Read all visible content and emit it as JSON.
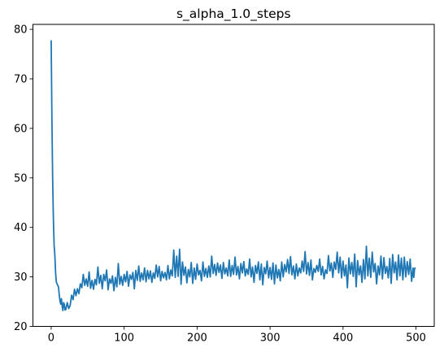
{
  "chart_data": {
    "type": "line",
    "title": "s_alpha_1.0_steps",
    "xlabel": "",
    "ylabel": "",
    "xlim": [
      -25,
      525
    ],
    "ylim": [
      20,
      81
    ],
    "xticks": [
      0,
      100,
      200,
      300,
      400,
      500
    ],
    "yticks": [
      20,
      30,
      40,
      50,
      60,
      70,
      80
    ],
    "grid": false,
    "legend": "none",
    "series": [
      {
        "color": "#1f77b4",
        "points": [
          [
            0,
            77.8
          ],
          [
            1,
            62
          ],
          [
            2,
            50
          ],
          [
            3,
            42
          ],
          [
            4,
            36.5
          ],
          [
            5,
            34.5
          ],
          [
            6,
            31
          ],
          [
            7,
            29
          ],
          [
            8,
            28.6
          ],
          [
            9,
            28.3
          ],
          [
            10,
            28
          ],
          [
            11,
            26.5
          ],
          [
            12,
            25.2
          ],
          [
            13,
            24.5
          ],
          [
            14,
            25.6
          ],
          [
            15,
            24.2
          ],
          [
            16,
            23.2
          ],
          [
            17,
            24.8
          ],
          [
            18,
            24.5
          ],
          [
            19,
            23.3
          ],
          [
            20,
            23.4
          ],
          [
            22,
            24.8
          ],
          [
            24,
            23.6
          ],
          [
            26,
            24.2
          ],
          [
            28,
            26.3
          ],
          [
            30,
            25.4
          ],
          [
            32,
            27.5
          ],
          [
            34,
            26.2
          ],
          [
            36,
            27.6
          ],
          [
            38,
            26.6
          ],
          [
            40,
            28.6
          ],
          [
            42,
            27.8
          ],
          [
            44,
            30.5
          ],
          [
            46,
            28.3
          ],
          [
            48,
            29.6
          ],
          [
            50,
            28.1
          ],
          [
            52,
            31.0
          ],
          [
            54,
            27.7
          ],
          [
            56,
            29.3
          ],
          [
            58,
            27.5
          ],
          [
            60,
            29.5
          ],
          [
            62,
            28.4
          ],
          [
            64,
            32.0
          ],
          [
            66,
            28.7
          ],
          [
            68,
            30.3
          ],
          [
            70,
            27.6
          ],
          [
            72,
            30.5
          ],
          [
            74,
            29.2
          ],
          [
            76,
            31.4
          ],
          [
            78,
            27.4
          ],
          [
            80,
            29.6
          ],
          [
            82,
            28.7
          ],
          [
            84,
            30.2
          ],
          [
            86,
            27.2
          ],
          [
            88,
            29.9
          ],
          [
            90,
            28.0
          ],
          [
            92,
            32.7
          ],
          [
            94,
            28.5
          ],
          [
            96,
            30.1
          ],
          [
            98,
            28.3
          ],
          [
            100,
            30.5
          ],
          [
            102,
            29.0
          ],
          [
            104,
            31.1
          ],
          [
            106,
            28.1
          ],
          [
            108,
            30.4
          ],
          [
            110,
            29.5
          ],
          [
            112,
            30.9
          ],
          [
            114,
            27.6
          ],
          [
            116,
            31.3
          ],
          [
            118,
            29.3
          ],
          [
            120,
            32.2
          ],
          [
            122,
            29.1
          ],
          [
            124,
            30.8
          ],
          [
            126,
            29.4
          ],
          [
            128,
            31.8
          ],
          [
            130,
            29.0
          ],
          [
            132,
            31.3
          ],
          [
            134,
            29.6
          ],
          [
            136,
            31.2
          ],
          [
            138,
            28.9
          ],
          [
            140,
            30.8
          ],
          [
            142,
            29.7
          ],
          [
            144,
            32.4
          ],
          [
            146,
            30.0
          ],
          [
            148,
            32.1
          ],
          [
            150,
            29.2
          ],
          [
            152,
            31.1
          ],
          [
            154,
            29.8
          ],
          [
            156,
            30.9
          ],
          [
            158,
            29.4
          ],
          [
            160,
            32.3
          ],
          [
            162,
            29.6
          ],
          [
            164,
            31.4
          ],
          [
            166,
            30.2
          ],
          [
            168,
            35.4
          ],
          [
            170,
            29.9
          ],
          [
            172,
            34.2
          ],
          [
            174,
            30.1
          ],
          [
            176,
            35.6
          ],
          [
            178,
            28.5
          ],
          [
            180,
            33.0
          ],
          [
            182,
            30.3
          ],
          [
            184,
            32.0
          ],
          [
            186,
            28.8
          ],
          [
            188,
            31.5
          ],
          [
            190,
            30.0
          ],
          [
            192,
            32.9
          ],
          [
            194,
            28.7
          ],
          [
            196,
            31.8
          ],
          [
            198,
            29.5
          ],
          [
            200,
            32.6
          ],
          [
            202,
            30.4
          ],
          [
            204,
            31.3
          ],
          [
            206,
            29.2
          ],
          [
            208,
            33.0
          ],
          [
            210,
            30.1
          ],
          [
            212,
            31.7
          ],
          [
            214,
            29.9
          ],
          [
            216,
            32.2
          ],
          [
            218,
            30.0
          ],
          [
            220,
            34.2
          ],
          [
            222,
            30.7
          ],
          [
            224,
            32.5
          ],
          [
            226,
            30.3
          ],
          [
            228,
            32.8
          ],
          [
            230,
            30.9
          ],
          [
            232,
            32.4
          ],
          [
            234,
            29.7
          ],
          [
            236,
            32.9
          ],
          [
            238,
            30.6
          ],
          [
            240,
            31.8
          ],
          [
            242,
            30.2
          ],
          [
            244,
            33.4
          ],
          [
            246,
            30.1
          ],
          [
            248,
            32.3
          ],
          [
            250,
            30.5
          ],
          [
            252,
            34.0
          ],
          [
            254,
            30.4
          ],
          [
            256,
            32.1
          ],
          [
            258,
            29.6
          ],
          [
            260,
            32.7
          ],
          [
            262,
            30.8
          ],
          [
            264,
            33.1
          ],
          [
            266,
            30.2
          ],
          [
            268,
            31.6
          ],
          [
            270,
            30.5
          ],
          [
            272,
            33.6
          ],
          [
            274,
            30.0
          ],
          [
            276,
            32.0
          ],
          [
            278,
            28.9
          ],
          [
            280,
            32.3
          ],
          [
            282,
            30.7
          ],
          [
            284,
            33.0
          ],
          [
            286,
            29.4
          ],
          [
            288,
            32.6
          ],
          [
            290,
            28.4
          ],
          [
            292,
            31.9
          ],
          [
            294,
            30.6
          ],
          [
            296,
            33.2
          ],
          [
            298,
            29.8
          ],
          [
            300,
            31.9
          ],
          [
            302,
            29.5
          ],
          [
            304,
            32.8
          ],
          [
            306,
            28.6
          ],
          [
            308,
            32.4
          ],
          [
            310,
            29.8
          ],
          [
            312,
            31.5
          ],
          [
            314,
            29.2
          ],
          [
            316,
            33.0
          ],
          [
            318,
            30.0
          ],
          [
            320,
            32.5
          ],
          [
            322,
            31.0
          ],
          [
            324,
            33.5
          ],
          [
            326,
            30.7
          ],
          [
            328,
            34.1
          ],
          [
            330,
            30.4
          ],
          [
            332,
            32.2
          ],
          [
            334,
            29.6
          ],
          [
            336,
            32.6
          ],
          [
            338,
            30.2
          ],
          [
            340,
            31.8
          ],
          [
            342,
            30.8
          ],
          [
            344,
            33.2
          ],
          [
            346,
            31.1
          ],
          [
            348,
            35.1
          ],
          [
            350,
            30.6
          ],
          [
            352,
            32.9
          ],
          [
            354,
            30.3
          ],
          [
            356,
            33.4
          ],
          [
            358,
            29.4
          ],
          [
            360,
            31.7
          ],
          [
            362,
            30.9
          ],
          [
            364,
            32.3
          ],
          [
            366,
            31.1
          ],
          [
            368,
            33.6
          ],
          [
            370,
            30.4
          ],
          [
            372,
            32.1
          ],
          [
            374,
            29.6
          ],
          [
            376,
            31.4
          ],
          [
            378,
            30.7
          ],
          [
            380,
            34.3
          ],
          [
            382,
            31.2
          ],
          [
            384,
            32.8
          ],
          [
            386,
            29.9
          ],
          [
            388,
            33.0
          ],
          [
            390,
            31.5
          ],
          [
            392,
            35.0
          ],
          [
            394,
            30.8
          ],
          [
            396,
            34.0
          ],
          [
            398,
            29.8
          ],
          [
            400,
            33.2
          ],
          [
            402,
            30.2
          ],
          [
            404,
            32.4
          ],
          [
            406,
            27.8
          ],
          [
            408,
            33.8
          ],
          [
            410,
            30.6
          ],
          [
            412,
            32.9
          ],
          [
            414,
            30.1
          ],
          [
            416,
            34.6
          ],
          [
            418,
            28.0
          ],
          [
            420,
            33.3
          ],
          [
            422,
            30.4
          ],
          [
            424,
            32.2
          ],
          [
            426,
            28.9
          ],
          [
            428,
            33.5
          ],
          [
            430,
            29.6
          ],
          [
            432,
            36.2
          ],
          [
            434,
            30.2
          ],
          [
            436,
            33.8
          ],
          [
            438,
            29.9
          ],
          [
            440,
            35.0
          ],
          [
            442,
            31.0
          ],
          [
            444,
            32.7
          ],
          [
            446,
            28.6
          ],
          [
            448,
            32.2
          ],
          [
            450,
            30.4
          ],
          [
            452,
            34.2
          ],
          [
            454,
            29.6
          ],
          [
            456,
            33.9
          ],
          [
            458,
            30.7
          ],
          [
            460,
            32.1
          ],
          [
            462,
            29.8
          ],
          [
            464,
            33.7
          ],
          [
            466,
            28.7
          ],
          [
            468,
            34.5
          ],
          [
            470,
            30.8
          ],
          [
            472,
            33.0
          ],
          [
            474,
            29.4
          ],
          [
            476,
            34.4
          ],
          [
            478,
            30.2
          ],
          [
            480,
            33.8
          ],
          [
            482,
            29.4
          ],
          [
            484,
            34.0
          ],
          [
            486,
            30.0
          ],
          [
            488,
            33.1
          ],
          [
            490,
            30.5
          ],
          [
            492,
            33.6
          ],
          [
            494,
            29.1
          ],
          [
            496,
            31.8
          ],
          [
            497,
            29.9
          ],
          [
            498,
            31.6
          ],
          [
            499,
            31.9
          ]
        ]
      }
    ]
  }
}
